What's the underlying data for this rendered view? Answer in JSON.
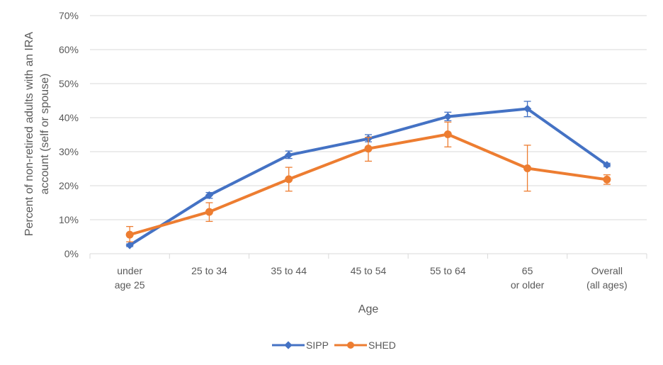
{
  "colors": {
    "SIPP": "#4472C4",
    "SHED": "#ED7D31",
    "grid": "#D9D9D9",
    "text": "#595959"
  },
  "chart_data": {
    "type": "line",
    "title": "",
    "xlabel": "Age",
    "ylabel_lines": [
      "Percent of non-retired adults with an IRA",
      "account (self or spouse)"
    ],
    "categories": [
      [
        "under",
        "age 25"
      ],
      [
        "25 to 34"
      ],
      [
        "35 to 44"
      ],
      [
        "45 to 54"
      ],
      [
        "55 to 64"
      ],
      [
        "65",
        "or older"
      ],
      [
        "Overall",
        "(all ages)"
      ]
    ],
    "ylim": [
      0,
      70
    ],
    "yticks": [
      0,
      10,
      20,
      30,
      40,
      50,
      60,
      70
    ],
    "ytick_labels": [
      "0%",
      "10%",
      "20%",
      "30%",
      "40%",
      "50%",
      "60%",
      "70%"
    ],
    "grid": true,
    "legend_position": "bottom",
    "series": [
      {
        "name": "SIPP",
        "marker": "diamond",
        "values": [
          2.5,
          17.2,
          29.0,
          33.8,
          40.3,
          42.6,
          26.1
        ],
        "error_low": [
          2.1,
          16.3,
          28.0,
          32.9,
          39.1,
          40.3,
          25.6
        ],
        "error_high": [
          2.9,
          18.0,
          30.2,
          35.0,
          41.6,
          44.8,
          26.6
        ]
      },
      {
        "name": "SHED",
        "marker": "circle",
        "values": [
          5.6,
          12.3,
          21.9,
          30.9,
          35.1,
          25.1,
          21.8
        ],
        "error_low": [
          3.5,
          9.5,
          18.4,
          27.2,
          31.4,
          18.4,
          20.4
        ],
        "error_high": [
          8.0,
          15.0,
          25.4,
          34.2,
          38.7,
          31.9,
          23.2
        ]
      }
    ]
  }
}
